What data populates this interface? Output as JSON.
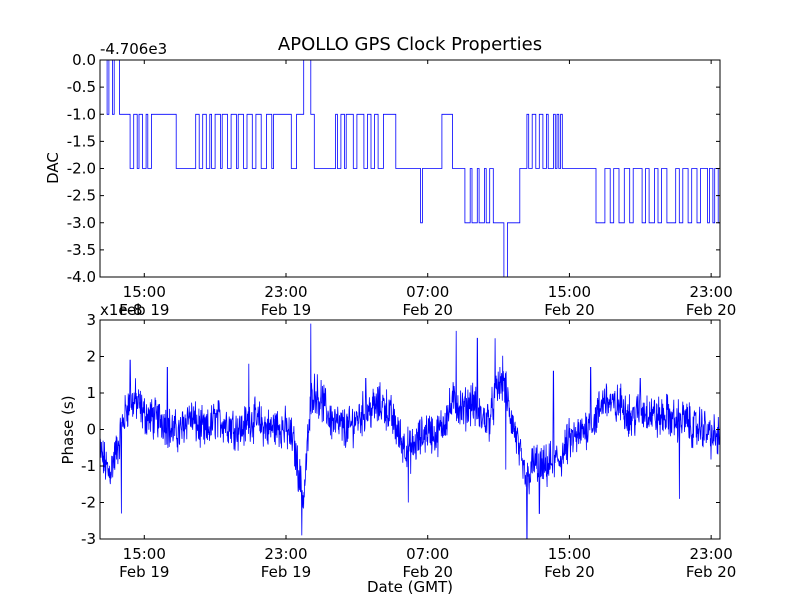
{
  "title": "APOLLO GPS Clock Properties",
  "colors": {
    "series": "#0000ff",
    "axes": "#000000",
    "background": "#ffffff"
  },
  "chart_data": [
    {
      "type": "line",
      "name": "dac",
      "ylabel": "DAC",
      "offset_label": "-4.706e3",
      "ylim": [
        -4.0,
        0.0
      ],
      "y_ticks": [
        {
          "value": 0.0,
          "label": "0.0"
        },
        {
          "value": -0.5,
          "label": "-0.5"
        },
        {
          "value": -1.0,
          "label": "-1.0"
        },
        {
          "value": -1.5,
          "label": "-1.5"
        },
        {
          "value": -2.0,
          "label": "-2.0"
        },
        {
          "value": -2.5,
          "label": "-2.5"
        },
        {
          "value": -3.0,
          "label": "-3.0"
        },
        {
          "value": -3.5,
          "label": "-3.5"
        },
        {
          "value": -4.0,
          "label": "-4.0"
        }
      ],
      "xlim_hours": [
        12.5,
        47.5
      ],
      "x_ticks": [
        {
          "value": 15,
          "time": "15:00",
          "date": "Feb 19"
        },
        {
          "value": 23,
          "time": "23:00",
          "date": "Feb 19"
        },
        {
          "value": 31,
          "time": "07:00",
          "date": "Feb 20"
        },
        {
          "value": 39,
          "time": "15:00",
          "date": "Feb 20"
        },
        {
          "value": 47,
          "time": "23:00",
          "date": "Feb 20"
        }
      ],
      "step_values": [
        [
          12.5,
          0
        ],
        [
          12.9,
          -1
        ],
        [
          13.0,
          0
        ],
        [
          13.2,
          -1
        ],
        [
          13.3,
          0
        ],
        [
          13.6,
          -1
        ],
        [
          14.2,
          -2
        ],
        [
          14.4,
          -1
        ],
        [
          14.6,
          -2
        ],
        [
          14.7,
          -1
        ],
        [
          14.9,
          -2
        ],
        [
          15.1,
          -1
        ],
        [
          15.2,
          -2
        ],
        [
          15.4,
          -1
        ],
        [
          16.8,
          -2
        ],
        [
          17.9,
          -1
        ],
        [
          18.1,
          -2
        ],
        [
          18.3,
          -1
        ],
        [
          18.5,
          -2
        ],
        [
          18.7,
          -1
        ],
        [
          18.8,
          -2
        ],
        [
          19.0,
          -1
        ],
        [
          19.3,
          -2
        ],
        [
          19.4,
          -1
        ],
        [
          19.7,
          -2
        ],
        [
          19.9,
          -1
        ],
        [
          20.2,
          -2
        ],
        [
          20.3,
          -1
        ],
        [
          20.6,
          -2
        ],
        [
          20.8,
          -1
        ],
        [
          21.1,
          -2
        ],
        [
          21.3,
          -1
        ],
        [
          21.6,
          -2
        ],
        [
          21.9,
          -1
        ],
        [
          22.2,
          -2
        ],
        [
          22.3,
          -1
        ],
        [
          23.3,
          -2
        ],
        [
          23.6,
          -1
        ],
        [
          24.0,
          0
        ],
        [
          24.4,
          -1
        ],
        [
          24.6,
          -2
        ],
        [
          25.8,
          -1
        ],
        [
          25.9,
          -2
        ],
        [
          26.1,
          -1
        ],
        [
          26.3,
          -2
        ],
        [
          26.4,
          -1
        ],
        [
          26.8,
          -2
        ],
        [
          27.0,
          -1
        ],
        [
          27.4,
          -2
        ],
        [
          27.6,
          -1
        ],
        [
          27.8,
          -2
        ],
        [
          28.0,
          -1
        ],
        [
          28.2,
          -2
        ],
        [
          28.5,
          -1
        ],
        [
          29.2,
          -2
        ],
        [
          30.6,
          -3
        ],
        [
          30.7,
          -2
        ],
        [
          31.8,
          -1
        ],
        [
          32.4,
          -2
        ],
        [
          33.1,
          -3
        ],
        [
          33.4,
          -2
        ],
        [
          33.5,
          -3
        ],
        [
          33.8,
          -2
        ],
        [
          33.9,
          -3
        ],
        [
          34.2,
          -2
        ],
        [
          34.3,
          -3
        ],
        [
          34.5,
          -2
        ],
        [
          34.7,
          -3
        ],
        [
          35.3,
          -4
        ],
        [
          35.5,
          -3
        ],
        [
          36.2,
          -2
        ],
        [
          36.6,
          -1
        ],
        [
          36.7,
          -2
        ],
        [
          36.9,
          -1
        ],
        [
          37.1,
          -2
        ],
        [
          37.3,
          -1
        ],
        [
          37.5,
          -2
        ],
        [
          37.7,
          -1
        ],
        [
          37.8,
          -2
        ],
        [
          38.1,
          -1
        ],
        [
          38.2,
          -2
        ],
        [
          38.3,
          -1
        ],
        [
          38.4,
          -2
        ],
        [
          38.5,
          -1
        ],
        [
          38.6,
          -2
        ],
        [
          40.5,
          -3
        ],
        [
          41.0,
          -2
        ],
        [
          41.3,
          -3
        ],
        [
          41.5,
          -2
        ],
        [
          41.8,
          -3
        ],
        [
          42.1,
          -2
        ],
        [
          42.4,
          -3
        ],
        [
          42.6,
          -2
        ],
        [
          43.1,
          -3
        ],
        [
          43.3,
          -2
        ],
        [
          43.5,
          -3
        ],
        [
          43.8,
          -2
        ],
        [
          44.0,
          -3
        ],
        [
          44.2,
          -2
        ],
        [
          44.5,
          -3
        ],
        [
          45.0,
          -2
        ],
        [
          45.2,
          -3
        ],
        [
          45.4,
          -2
        ],
        [
          45.7,
          -3
        ],
        [
          45.9,
          -2
        ],
        [
          46.2,
          -3
        ],
        [
          46.4,
          -2
        ],
        [
          46.8,
          -3
        ],
        [
          46.9,
          -2
        ],
        [
          47.1,
          -3
        ],
        [
          47.2,
          -2
        ],
        [
          47.4,
          -3
        ],
        [
          47.5,
          -2
        ]
      ]
    },
    {
      "type": "line",
      "name": "phase",
      "ylabel": "Phase (s)",
      "xlabel": "Date (GMT)",
      "offset_label": "x1e-8",
      "ylim": [
        -3,
        3
      ],
      "y_ticks": [
        {
          "value": 3,
          "label": "3"
        },
        {
          "value": 2,
          "label": "2"
        },
        {
          "value": 1,
          "label": "1"
        },
        {
          "value": 0,
          "label": "0"
        },
        {
          "value": -1,
          "label": "-1"
        },
        {
          "value": -2,
          "label": "-2"
        },
        {
          "value": -3,
          "label": "-3"
        }
      ],
      "xlim_hours": [
        12.5,
        47.5
      ],
      "x_ticks": [
        {
          "value": 15,
          "time": "15:00",
          "date": "Feb 19"
        },
        {
          "value": 23,
          "time": "23:00",
          "date": "Feb 19"
        },
        {
          "value": 31,
          "time": "07:00",
          "date": "Feb 20"
        },
        {
          "value": 39,
          "time": "15:00",
          "date": "Feb 20"
        },
        {
          "value": 47,
          "time": "23:00",
          "date": "Feb 20"
        }
      ],
      "trend_values": [
        [
          12.5,
          -0.6
        ],
        [
          13.0,
          -1.2
        ],
        [
          13.3,
          -0.8
        ],
        [
          13.6,
          -0.3
        ],
        [
          14.0,
          0.6
        ],
        [
          14.5,
          0.8
        ],
        [
          15.0,
          0.4
        ],
        [
          15.5,
          0.3
        ],
        [
          16.0,
          0.3
        ],
        [
          16.5,
          0.0
        ],
        [
          17.0,
          -0.1
        ],
        [
          17.5,
          0.4
        ],
        [
          18.0,
          0.1
        ],
        [
          18.5,
          -0.1
        ],
        [
          19.0,
          0.3
        ],
        [
          19.5,
          0.2
        ],
        [
          20.0,
          0.1
        ],
        [
          20.5,
          0.0
        ],
        [
          21.0,
          0.3
        ],
        [
          21.5,
          0.2
        ],
        [
          22.0,
          0.0
        ],
        [
          22.5,
          0.1
        ],
        [
          23.0,
          0.0
        ],
        [
          23.4,
          -0.3
        ],
        [
          23.8,
          -1.4
        ],
        [
          24.0,
          -1.9
        ],
        [
          24.2,
          -0.5
        ],
        [
          24.5,
          1.1
        ],
        [
          25.0,
          0.8
        ],
        [
          25.5,
          0.3
        ],
        [
          26.0,
          0.1
        ],
        [
          26.5,
          0.0
        ],
        [
          27.0,
          0.3
        ],
        [
          27.5,
          0.5
        ],
        [
          28.0,
          0.6
        ],
        [
          28.5,
          0.7
        ],
        [
          29.0,
          0.3
        ],
        [
          29.5,
          -0.3
        ],
        [
          30.0,
          -0.6
        ],
        [
          30.5,
          -0.3
        ],
        [
          31.0,
          0.0
        ],
        [
          31.5,
          -0.2
        ],
        [
          32.0,
          0.3
        ],
        [
          32.5,
          0.8
        ],
        [
          33.0,
          0.5
        ],
        [
          33.5,
          0.8
        ],
        [
          34.0,
          0.3
        ],
        [
          34.5,
          0.3
        ],
        [
          35.0,
          1.2
        ],
        [
          35.3,
          1.4
        ],
        [
          35.6,
          0.5
        ],
        [
          36.0,
          -0.2
        ],
        [
          36.3,
          -1.0
        ],
        [
          36.6,
          -1.4
        ],
        [
          37.0,
          -0.9
        ],
        [
          37.5,
          -1.1
        ],
        [
          38.0,
          -0.9
        ],
        [
          38.5,
          -0.8
        ],
        [
          39.0,
          -0.3
        ],
        [
          39.5,
          -0.2
        ],
        [
          40.0,
          0.1
        ],
        [
          40.5,
          0.3
        ],
        [
          41.0,
          0.9
        ],
        [
          41.5,
          0.6
        ],
        [
          42.0,
          0.7
        ],
        [
          42.5,
          0.3
        ],
        [
          43.0,
          0.5
        ],
        [
          43.5,
          0.5
        ],
        [
          44.0,
          0.3
        ],
        [
          44.5,
          0.4
        ],
        [
          45.0,
          0.2
        ],
        [
          45.5,
          0.3
        ],
        [
          46.0,
          0.0
        ],
        [
          46.5,
          0.1
        ],
        [
          47.0,
          -0.2
        ],
        [
          47.5,
          -0.2
        ]
      ],
      "spikes": [
        [
          13.7,
          -2.3
        ],
        [
          14.2,
          1.9
        ],
        [
          16.3,
          1.7
        ],
        [
          20.9,
          1.8
        ],
        [
          23.9,
          -2.9
        ],
        [
          24.4,
          2.9
        ],
        [
          27.5,
          1.4
        ],
        [
          29.9,
          -2.0
        ],
        [
          32.6,
          2.7
        ],
        [
          33.8,
          2.5
        ],
        [
          34.8,
          2.5
        ],
        [
          35.4,
          -1.1
        ],
        [
          36.6,
          -3.0
        ],
        [
          37.3,
          -2.3
        ],
        [
          38.1,
          1.6
        ],
        [
          40.2,
          1.7
        ],
        [
          43.0,
          1.4
        ],
        [
          45.2,
          -1.9
        ]
      ]
    }
  ]
}
